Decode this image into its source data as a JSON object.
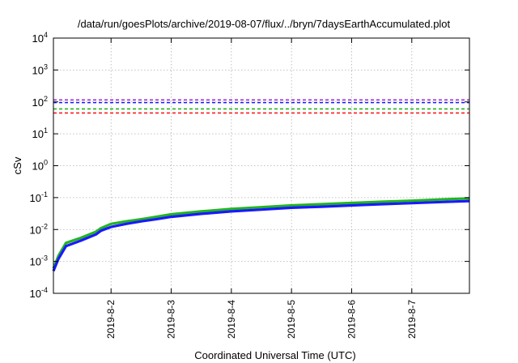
{
  "chart_data": {
    "type": "line",
    "title": "/data/run/goesPlots/archive/2019-08-07/flux/../bryn/7daysEarthAccumulated.plot",
    "xlabel": "Coordinated Universal Time (UTC)",
    "ylabel": "cSv",
    "yscale": "log",
    "ylim": [
      0.0001,
      10000
    ],
    "xlim": [
      "2019-08-01 01:00",
      "2019-08-07 23:00"
    ],
    "y_ticks": [
      {
        "value": 0.0001,
        "base": "10",
        "exp": "-4"
      },
      {
        "value": 0.001,
        "base": "10",
        "exp": "-3"
      },
      {
        "value": 0.01,
        "base": "10",
        "exp": "-2"
      },
      {
        "value": 0.1,
        "base": "10",
        "exp": "-1"
      },
      {
        "value": 1,
        "base": "10",
        "exp": "0"
      },
      {
        "value": 10,
        "base": "10",
        "exp": "1"
      },
      {
        "value": 100,
        "base": "10",
        "exp": "2"
      },
      {
        "value": 1000,
        "base": "10",
        "exp": "3"
      },
      {
        "value": 10000,
        "base": "10",
        "exp": "4"
      }
    ],
    "x_ticks": [
      {
        "value": "2019-08-02 00:00",
        "label": "2019-8-2"
      },
      {
        "value": "2019-08-03 00:00",
        "label": "2019-8-3"
      },
      {
        "value": "2019-08-04 00:00",
        "label": "2019-8-4"
      },
      {
        "value": "2019-08-05 00:00",
        "label": "2019-8-5"
      },
      {
        "value": "2019-08-06 00:00",
        "label": "2019-8-6"
      },
      {
        "value": "2019-08-07 00:00",
        "label": "2019-8-7"
      }
    ],
    "grid": true,
    "reference_lines": [
      {
        "y": 115,
        "color": "#9b30d9",
        "style": "dashed"
      },
      {
        "y": 95,
        "color": "#1a1aff",
        "style": "dashed"
      },
      {
        "y": 60,
        "color": "#22b422",
        "style": "dashed"
      },
      {
        "y": 45,
        "color": "#ff1a1a",
        "style": "dashed"
      }
    ],
    "series": [
      {
        "color": "#22b422",
        "x": [
          "2019-08-01 01:00",
          "2019-08-01 03:00",
          "2019-08-01 06:00",
          "2019-08-01 12:00",
          "2019-08-01 18:00",
          "2019-08-01 20:00",
          "2019-08-02 00:00",
          "2019-08-02 06:00",
          "2019-08-02 12:00",
          "2019-08-02 18:00",
          "2019-08-03 00:00",
          "2019-08-03 12:00",
          "2019-08-04 00:00",
          "2019-08-04 12:00",
          "2019-08-05 00:00",
          "2019-08-05 12:00",
          "2019-08-06 00:00",
          "2019-08-06 12:00",
          "2019-08-07 00:00",
          "2019-08-07 12:00",
          "2019-08-07 23:00"
        ],
        "y": [
          0.0006,
          0.0015,
          0.0038,
          0.0055,
          0.0085,
          0.011,
          0.015,
          0.018,
          0.021,
          0.025,
          0.03,
          0.037,
          0.044,
          0.05,
          0.057,
          0.062,
          0.068,
          0.074,
          0.08,
          0.088,
          0.095
        ]
      },
      {
        "color": "#1a1aff",
        "x": [
          "2019-08-01 01:00",
          "2019-08-01 03:00",
          "2019-08-01 06:00",
          "2019-08-01 12:00",
          "2019-08-01 18:00",
          "2019-08-01 20:00",
          "2019-08-02 00:00",
          "2019-08-02 06:00",
          "2019-08-02 12:00",
          "2019-08-02 18:00",
          "2019-08-03 00:00",
          "2019-08-03 12:00",
          "2019-08-04 00:00",
          "2019-08-04 12:00",
          "2019-08-05 00:00",
          "2019-08-05 12:00",
          "2019-08-06 00:00",
          "2019-08-06 12:00",
          "2019-08-07 00:00",
          "2019-08-07 12:00",
          "2019-08-07 23:00"
        ],
        "y": [
          0.0005,
          0.0012,
          0.003,
          0.0045,
          0.007,
          0.0092,
          0.012,
          0.015,
          0.018,
          0.021,
          0.025,
          0.031,
          0.037,
          0.042,
          0.048,
          0.052,
          0.057,
          0.062,
          0.067,
          0.073,
          0.078
        ]
      }
    ]
  }
}
